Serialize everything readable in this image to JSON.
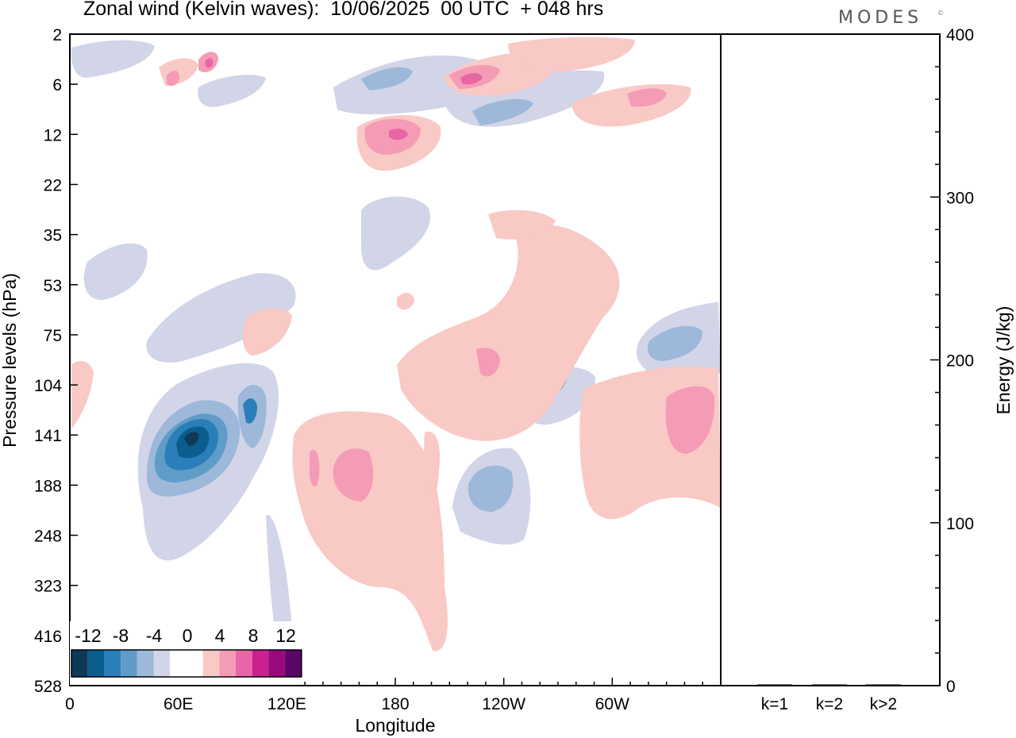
{
  "title": "Zonal wind (Kelvin waves):  10/06/2025  00 UTC  + 048 hrs",
  "brand": "MODES",
  "brand_mark": "©",
  "colors": {
    "neg": [
      "#0e3a58",
      "#0b5d8e",
      "#2a7fb8",
      "#5f9cc8",
      "#9db8d9",
      "#d2d5e8"
    ],
    "zero": "#ffffff",
    "pos": [
      "#f9c9c6",
      "#f49cb6",
      "#e866a6",
      "#c9218e",
      "#9a0a7c",
      "#5b0767"
    ]
  },
  "chart_data": [
    {
      "type": "heatmap",
      "title": "Zonal wind (Kelvin waves):  10/06/2025  00 UTC  + 048 hrs",
      "xlabel": "Longitude",
      "ylabel": "Pressure levels (hPa)",
      "x_ticks": [
        "0",
        "60E",
        "120E",
        "180",
        "120W",
        "60W"
      ],
      "x_tick_values": [
        0,
        60,
        120,
        180,
        240,
        300
      ],
      "x_range": [
        0,
        360
      ],
      "y_ticks": [
        "2",
        "6",
        "12",
        "22",
        "35",
        "53",
        "75",
        "104",
        "141",
        "188",
        "248",
        "323",
        "416",
        "528"
      ],
      "y_scale": "categorical pressure levels",
      "colorbar": {
        "labels": [
          "-12",
          "-8",
          "-4",
          "0",
          "4",
          "8",
          "12"
        ],
        "levels": [
          -14,
          -12,
          -10,
          -8,
          -6,
          -4,
          -2,
          2,
          4,
          6,
          8,
          10,
          12,
          14
        ],
        "placement": "bottom-left"
      },
      "features": [
        {
          "lon": 62,
          "level": "141",
          "value": -13
        },
        {
          "lon": 100,
          "level": "141",
          "value": -8
        },
        {
          "lon": 40,
          "level": "75",
          "value": -4
        },
        {
          "lon": 232,
          "level": "188",
          "value": -7
        },
        {
          "lon": 260,
          "level": "104",
          "value": -6
        },
        {
          "lon": 325,
          "level": "75",
          "value": -6
        },
        {
          "lon": 180,
          "level": "12",
          "value": 8
        },
        {
          "lon": 225,
          "level": "6",
          "value": 9
        },
        {
          "lon": 340,
          "level": "141",
          "value": 6
        },
        {
          "lon": 165,
          "level": "188",
          "value": 5
        },
        {
          "lon": 235,
          "level": "75",
          "value": 3
        }
      ]
    },
    {
      "type": "bar",
      "categories": [
        "k=1",
        "k=2",
        "k>2"
      ],
      "values": [
        0.3,
        0.6,
        0.3
      ],
      "ylabel": "Energy (J/kg)",
      "ylim": [
        0,
        400
      ],
      "y_ticks": [
        "0",
        "100",
        "200",
        "300",
        "400"
      ]
    }
  ]
}
